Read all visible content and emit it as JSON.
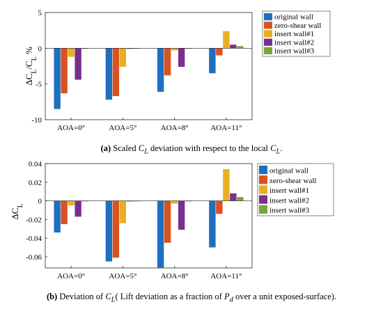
{
  "colors": [
    "#1f6fbf",
    "#d9521f",
    "#e8b021",
    "#7b2f8c",
    "#74a83a"
  ],
  "chart_data": [
    {
      "type": "bar",
      "categories": [
        "AOA=0°",
        "AOA=5°",
        "AOA=8°",
        "AOA=11°"
      ],
      "ylabel": "ΔC_L/C_L %",
      "ylim": [
        -10,
        5
      ],
      "yticks": [
        -10,
        -5,
        0,
        5
      ],
      "ytick_labels": [
        "-10",
        "-5",
        "0",
        "5"
      ],
      "legend_position": "top-right",
      "series": [
        {
          "name": "original wall",
          "values": [
            -8.5,
            -7.2,
            -6.1,
            -3.5
          ]
        },
        {
          "name": "zero-shear wall",
          "values": [
            -6.3,
            -6.7,
            -3.8,
            -1.0
          ]
        },
        {
          "name": "insert wall#1",
          "values": [
            -1.2,
            -2.6,
            -0.3,
            2.4
          ]
        },
        {
          "name": "insert wall#2",
          "values": [
            -4.4,
            0.0,
            -2.6,
            0.5
          ]
        },
        {
          "name": "insert wall#3",
          "values": [
            0.0,
            0.0,
            0.0,
            0.3
          ]
        }
      ]
    },
    {
      "type": "bar",
      "categories": [
        "AOA=0°",
        "AOA=5°",
        "AOA=8°",
        "AOA=11°"
      ],
      "ylabel": "ΔC_L",
      "ylim": [
        -0.072,
        0.04
      ],
      "yticks": [
        -0.06,
        -0.04,
        -0.02,
        0,
        0.02,
        0.04
      ],
      "ytick_labels": [
        "-0.06",
        "-0.04",
        "-0.02",
        "0",
        "0.02",
        "0.04"
      ],
      "legend_position": "top-right",
      "series": [
        {
          "name": "original wall",
          "values": [
            -0.034,
            -0.065,
            -0.072,
            -0.05
          ]
        },
        {
          "name": "zero-shear wall",
          "values": [
            -0.025,
            -0.061,
            -0.045,
            -0.014
          ]
        },
        {
          "name": "insert wall#1",
          "values": [
            -0.005,
            -0.024,
            -0.003,
            0.034
          ]
        },
        {
          "name": "insert wall#2",
          "values": [
            -0.017,
            0.0,
            -0.031,
            0.008
          ]
        },
        {
          "name": "insert wall#3",
          "values": [
            0.0,
            0.0,
            0.0,
            0.004
          ]
        }
      ]
    }
  ],
  "captions": {
    "a": {
      "label": "(a)",
      "pre": " Scaled ",
      "var": "C",
      "sub": "L",
      "mid": " deviation with respect to the local ",
      "var2": "C",
      "sub2": "L",
      "end": "."
    },
    "b": {
      "label": "(b)",
      "pre": " Deviation of ",
      "var": "C",
      "sub": "L",
      "mid": "( Lift deviation as a fraction of ",
      "var2": "P",
      "sub2": "d",
      "end": " over a unit exposed-surface)."
    }
  }
}
